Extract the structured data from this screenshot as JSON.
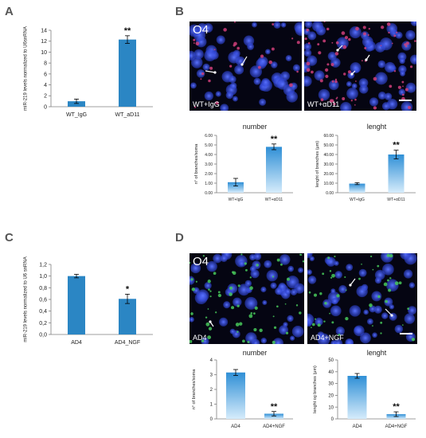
{
  "panels": [
    {
      "letter": "A"
    },
    {
      "letter": "B"
    },
    {
      "letter": "C"
    },
    {
      "letter": "D"
    }
  ],
  "micrographs": {
    "B_left": {
      "marker": "O4",
      "label": "WT+IgG"
    },
    "B_right": {
      "marker": "",
      "label": "WT+αD11"
    },
    "D_left": {
      "marker": "O4",
      "label": "AD4"
    },
    "D_right": {
      "marker": "",
      "label": "AD4+NGF"
    }
  },
  "colors": {
    "bar_blue": "#2b86c4",
    "bar_gradient_top": "#2f8fd6",
    "bar_gradient_bottom": "#d6ecfb",
    "nuclei_blue": "#2a3fd1",
    "b_stain": "#d0407a",
    "d_stain": "#48c85a"
  },
  "chart_data": [
    {
      "id": "A",
      "type": "bar",
      "categories": [
        "WT_IgG",
        "WT_aD11"
      ],
      "values": [
        1.0,
        12.3
      ],
      "errors": [
        0.4,
        0.7
      ],
      "significance": [
        "",
        "**"
      ],
      "ylabel": "miR-219 levels normalized to U6snRNA",
      "ylim": [
        0,
        14
      ],
      "yticks": [
        "0",
        "2",
        "4",
        "6",
        "8",
        "10",
        "12",
        "14"
      ]
    },
    {
      "id": "B_number",
      "type": "bar",
      "title": "number",
      "categories": [
        "WT+IgG",
        "WT+αD11"
      ],
      "values": [
        1.1,
        4.8
      ],
      "errors": [
        0.4,
        0.3
      ],
      "significance": [
        "",
        "**"
      ],
      "ylabel": "n° of branches/soma",
      "ylim": [
        0,
        6
      ],
      "yticks": [
        "0.00",
        "1.00",
        "2.00",
        "3.00",
        "4.00",
        "5.00",
        "6.00"
      ]
    },
    {
      "id": "B_lenght",
      "type": "bar",
      "title": "lenght",
      "categories": [
        "WT+IgG",
        "WT+αD11"
      ],
      "values": [
        9.5,
        40.0
      ],
      "errors": [
        1.0,
        4.5
      ],
      "significance": [
        "",
        "**"
      ],
      "ylabel": "lenght of branches (μm)",
      "ylim": [
        0,
        60
      ],
      "yticks": [
        "0.00",
        "10.00",
        "20.00",
        "30.00",
        "40.00",
        "50.00",
        "60.00"
      ]
    },
    {
      "id": "C",
      "type": "bar",
      "categories": [
        "AD4",
        "AD4_NGF"
      ],
      "values": [
        1.0,
        0.61
      ],
      "errors": [
        0.03,
        0.08
      ],
      "significance": [
        "",
        "*"
      ],
      "ylabel": "miR-219 levels normalized to U6 snRNA",
      "ylim": [
        0,
        1.2
      ],
      "yticks": [
        "0,0",
        "0,2",
        "0,4",
        "0,6",
        "0,8",
        "1,0",
        "1,2"
      ]
    },
    {
      "id": "D_number",
      "type": "bar",
      "title": "number",
      "categories": [
        "AD4",
        "AD4+NGF"
      ],
      "values": [
        3.15,
        0.35
      ],
      "errors": [
        0.2,
        0.15
      ],
      "significance": [
        "",
        "**"
      ],
      "ylabel": "n° of branches/soma",
      "ylim": [
        0,
        4
      ],
      "yticks": [
        "0",
        "1",
        "2",
        "3",
        "4"
      ]
    },
    {
      "id": "D_lenght",
      "type": "bar",
      "title": "lenght",
      "categories": [
        "AD4",
        "AD4+NGF"
      ],
      "values": [
        36.5,
        4.0
      ],
      "errors": [
        2.0,
        2.0
      ],
      "significance": [
        "",
        "**"
      ],
      "ylabel": "lenght og branches (μm)",
      "ylim": [
        0,
        50
      ],
      "yticks": [
        "0",
        "10",
        "20",
        "30",
        "40",
        "50"
      ]
    }
  ]
}
